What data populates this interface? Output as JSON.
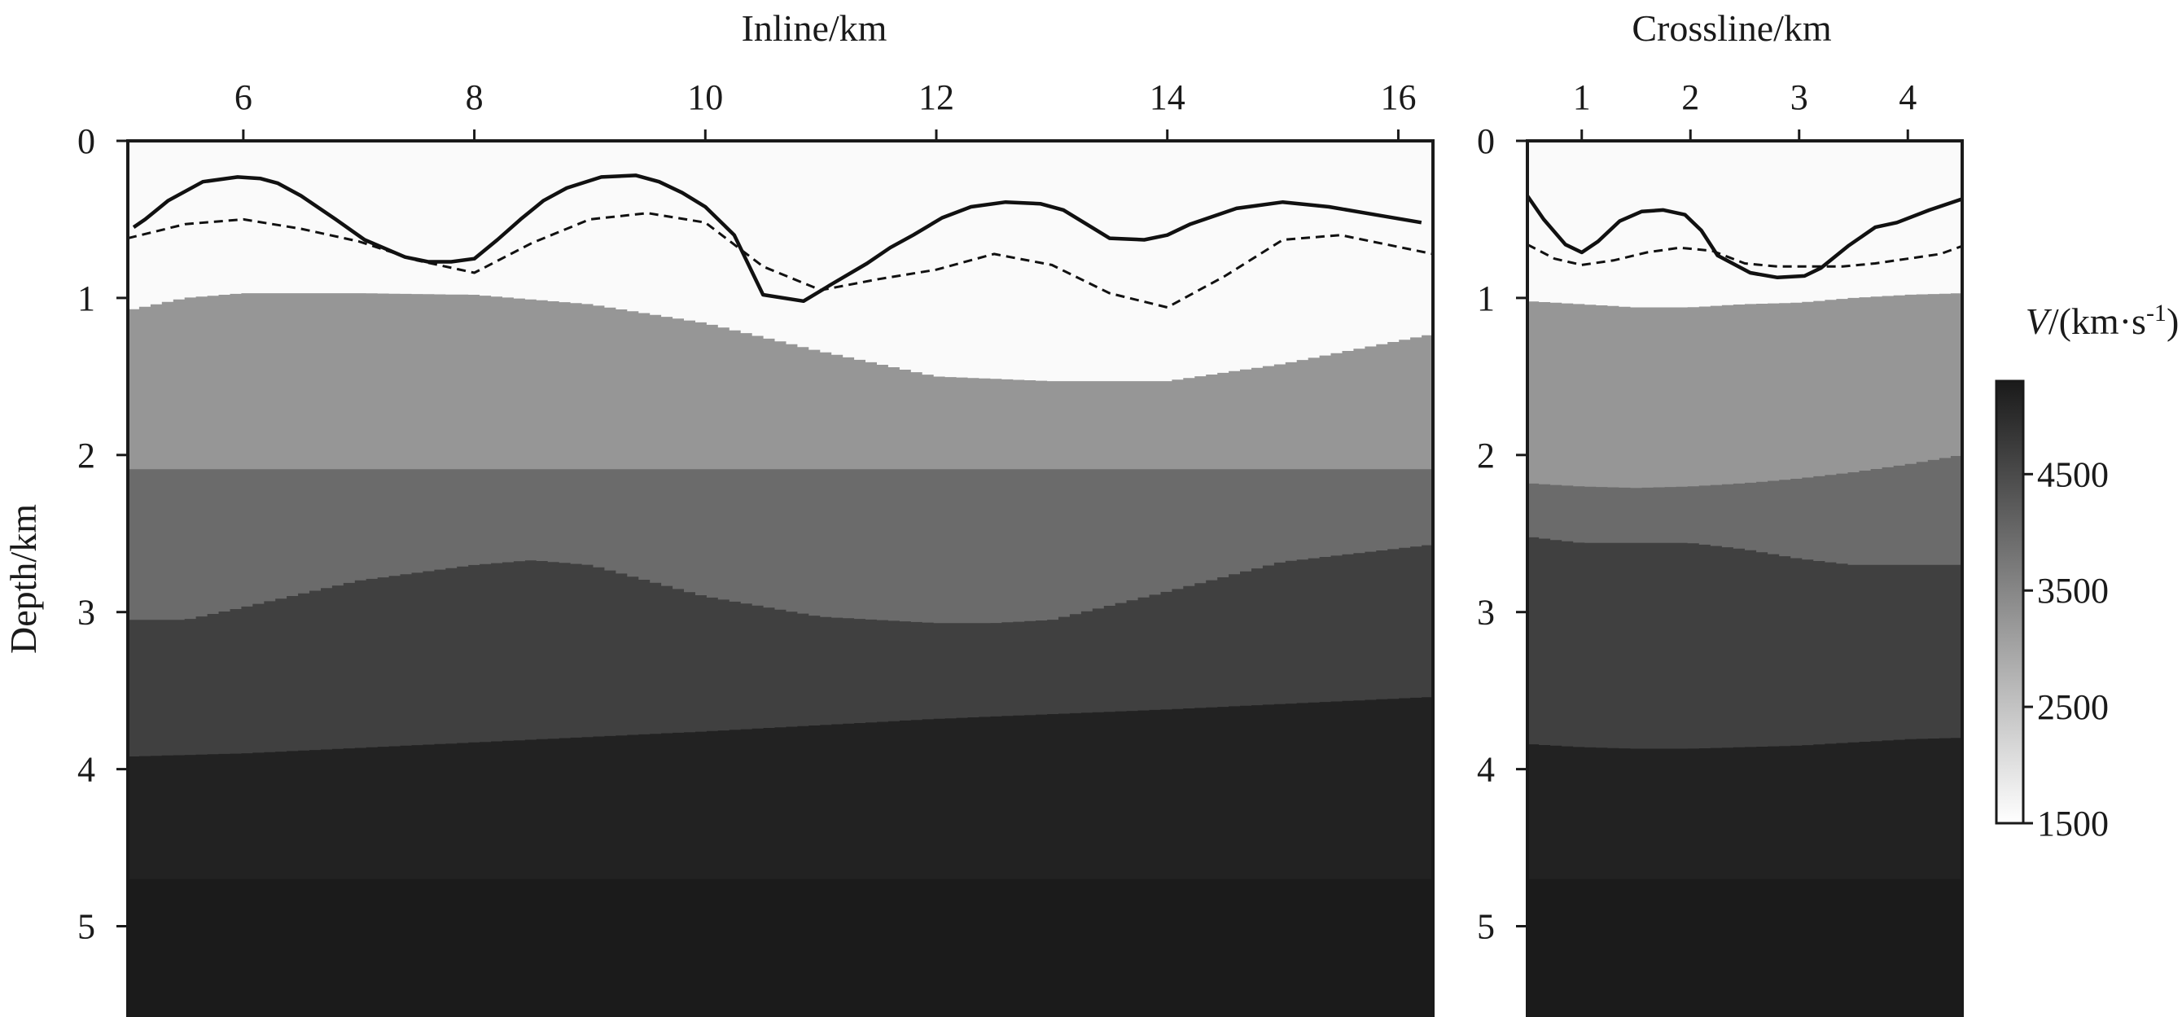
{
  "chart_data": [
    {
      "type": "heatmap",
      "panel": "inline",
      "xlabel": "Inline/km",
      "ylabel": "Depth/km",
      "xticks": [
        "6",
        "8",
        "10",
        "12",
        "14",
        "16"
      ],
      "yticks": [
        "0",
        "1",
        "2",
        "3",
        "4",
        "5"
      ],
      "xlim": [
        5.0,
        16.3
      ],
      "ylim": [
        5.55,
        0
      ],
      "layers": [
        {
          "velocity": 2800,
          "color": "#969696",
          "top": {
            "x": [
              5.0,
              5.5,
              6.0,
              7.0,
              8.0,
              9.0,
              10.0,
              11.0,
              12.0,
              13.0,
              14.0,
              15.0,
              16.3
            ],
            "depth": [
              1.08,
              1.0,
              0.97,
              0.97,
              0.98,
              1.04,
              1.16,
              1.34,
              1.5,
              1.53,
              1.53,
              1.42,
              1.23
            ]
          }
        },
        {
          "velocity": 3400,
          "color": "#6b6b6b",
          "top": {
            "x": [
              5.0,
              16.3
            ],
            "depth": [
              2.09,
              2.09
            ]
          }
        },
        {
          "velocity": 4000,
          "color": "#404040",
          "top": {
            "x": [
              5.0,
              5.5,
              6.0,
              7.0,
              8.0,
              8.5,
              9.0,
              10.0,
              11.0,
              12.0,
              12.5,
              13.0,
              14.0,
              15.0,
              16.3
            ],
            "depth": [
              3.05,
              3.05,
              2.97,
              2.8,
              2.7,
              2.67,
              2.7,
              2.9,
              3.03,
              3.07,
              3.07,
              3.05,
              2.87,
              2.68,
              2.57
            ]
          }
        },
        {
          "velocity": 4700,
          "color": "#222222",
          "top": {
            "x": [
              5.0,
              6.0,
              8.0,
              10.0,
              12.0,
              14.0,
              16.3
            ],
            "depth": [
              3.92,
              3.9,
              3.83,
              3.76,
              3.68,
              3.62,
              3.54
            ]
          }
        },
        {
          "velocity": 5200,
          "color": "#1b1b1b",
          "top": {
            "x": [
              5.0,
              16.3
            ],
            "depth": [
              4.7,
              4.7
            ]
          }
        }
      ],
      "series": [
        {
          "style": "solid",
          "x": [
            5.05,
            5.15,
            5.35,
            5.65,
            5.95,
            6.15,
            6.3,
            6.5,
            6.8,
            7.05,
            7.4,
            7.6,
            7.8,
            8.0,
            8.2,
            8.4,
            8.6,
            8.8,
            9.1,
            9.4,
            9.6,
            9.8,
            10.0,
            10.25,
            10.5,
            10.85,
            11.1,
            11.4,
            11.6,
            11.8,
            12.05,
            12.3,
            12.6,
            12.9,
            13.1,
            13.3,
            13.5,
            13.8,
            14.0,
            14.2,
            14.6,
            15.0,
            15.4,
            15.8,
            16.2
          ],
          "depth": [
            0.55,
            0.5,
            0.38,
            0.26,
            0.23,
            0.24,
            0.27,
            0.35,
            0.5,
            0.63,
            0.74,
            0.77,
            0.77,
            0.75,
            0.63,
            0.5,
            0.38,
            0.3,
            0.23,
            0.22,
            0.26,
            0.33,
            0.42,
            0.6,
            0.98,
            1.02,
            0.91,
            0.78,
            0.68,
            0.6,
            0.49,
            0.42,
            0.39,
            0.4,
            0.44,
            0.53,
            0.62,
            0.63,
            0.6,
            0.53,
            0.43,
            0.39,
            0.42,
            0.47,
            0.52
          ]
        },
        {
          "style": "dashed",
          "x": [
            5.0,
            5.5,
            6.0,
            6.5,
            7.0,
            7.5,
            8.0,
            8.5,
            9.0,
            9.5,
            10.0,
            10.5,
            11.0,
            11.5,
            12.0,
            12.5,
            13.0,
            13.5,
            14.0,
            14.5,
            15.0,
            15.5,
            16.3
          ],
          "depth": [
            0.62,
            0.53,
            0.5,
            0.56,
            0.64,
            0.76,
            0.84,
            0.65,
            0.5,
            0.46,
            0.52,
            0.8,
            0.95,
            0.88,
            0.82,
            0.72,
            0.79,
            0.97,
            1.06,
            0.86,
            0.63,
            0.6,
            0.72
          ]
        }
      ]
    },
    {
      "type": "heatmap",
      "panel": "crossline",
      "xlabel": "Crossline/km",
      "ylabel": "",
      "xticks": [
        "1",
        "2",
        "3",
        "4"
      ],
      "yticks": [
        "0",
        "1",
        "2",
        "3",
        "4",
        "5"
      ],
      "xlim": [
        0.5,
        4.5
      ],
      "ylim": [
        5.55,
        0
      ],
      "layers": [
        {
          "velocity": 2800,
          "color": "#969696",
          "top": {
            "x": [
              0.5,
              1.0,
              1.5,
              2.0,
              2.5,
              3.0,
              3.5,
              4.0,
              4.5
            ],
            "depth": [
              1.02,
              1.04,
              1.06,
              1.06,
              1.04,
              1.03,
              1.0,
              0.98,
              0.97
            ]
          }
        },
        {
          "velocity": 3400,
          "color": "#6b6b6b",
          "top": {
            "x": [
              0.5,
              1.0,
              1.5,
              2.0,
              2.5,
              3.0,
              3.5,
              4.0,
              4.5
            ],
            "depth": [
              2.18,
              2.2,
              2.21,
              2.2,
              2.18,
              2.15,
              2.11,
              2.06,
              2.0
            ]
          }
        },
        {
          "velocity": 4000,
          "color": "#404040",
          "top": {
            "x": [
              0.5,
              1.0,
              1.5,
              2.0,
              2.5,
              3.0,
              3.5,
              4.0,
              4.5
            ],
            "depth": [
              2.52,
              2.56,
              2.56,
              2.56,
              2.6,
              2.66,
              2.7,
              2.7,
              2.7
            ]
          }
        },
        {
          "velocity": 4700,
          "color": "#222222",
          "top": {
            "x": [
              0.5,
              1.0,
              1.5,
              2.0,
              2.5,
              3.0,
              3.5,
              4.0,
              4.5
            ],
            "depth": [
              3.84,
              3.86,
              3.87,
              3.87,
              3.86,
              3.85,
              3.83,
              3.81,
              3.8
            ]
          }
        },
        {
          "velocity": 5200,
          "color": "#1b1b1b",
          "top": {
            "x": [
              0.5,
              4.5
            ],
            "depth": [
              4.7,
              4.7
            ]
          }
        }
      ],
      "series": [
        {
          "style": "solid",
          "x": [
            0.5,
            0.65,
            0.85,
            1.0,
            1.15,
            1.35,
            1.55,
            1.75,
            1.95,
            2.1,
            2.25,
            2.55,
            2.8,
            3.05,
            3.2,
            3.45,
            3.7,
            3.9,
            4.2,
            4.5
          ],
          "depth": [
            0.35,
            0.5,
            0.66,
            0.71,
            0.64,
            0.51,
            0.45,
            0.44,
            0.47,
            0.57,
            0.73,
            0.84,
            0.87,
            0.86,
            0.81,
            0.67,
            0.55,
            0.52,
            0.44,
            0.37
          ]
        },
        {
          "style": "dashed",
          "x": [
            0.5,
            0.75,
            1.0,
            1.3,
            1.6,
            1.9,
            2.2,
            2.5,
            2.8,
            3.1,
            3.4,
            3.7,
            4.0,
            4.3,
            4.5
          ],
          "depth": [
            0.66,
            0.75,
            0.79,
            0.76,
            0.71,
            0.68,
            0.7,
            0.78,
            0.8,
            0.8,
            0.8,
            0.78,
            0.75,
            0.72,
            0.67
          ]
        }
      ]
    }
  ],
  "colorbar": {
    "title_italic": "V",
    "title_rest": "/(km·s",
    "title_sup": "-1",
    "title_close": ")",
    "ticks": [
      "4500",
      "3500",
      "2500",
      "1500"
    ],
    "tick_values": [
      4500,
      3500,
      2500,
      1500
    ],
    "vmin": 1500,
    "vmax": 5300,
    "color_min": "#ffffff",
    "color_max": "#1a1a1a"
  },
  "colors": {
    "background": "#fafafa",
    "contour": "#111111",
    "frame": "#1a1a1a"
  }
}
